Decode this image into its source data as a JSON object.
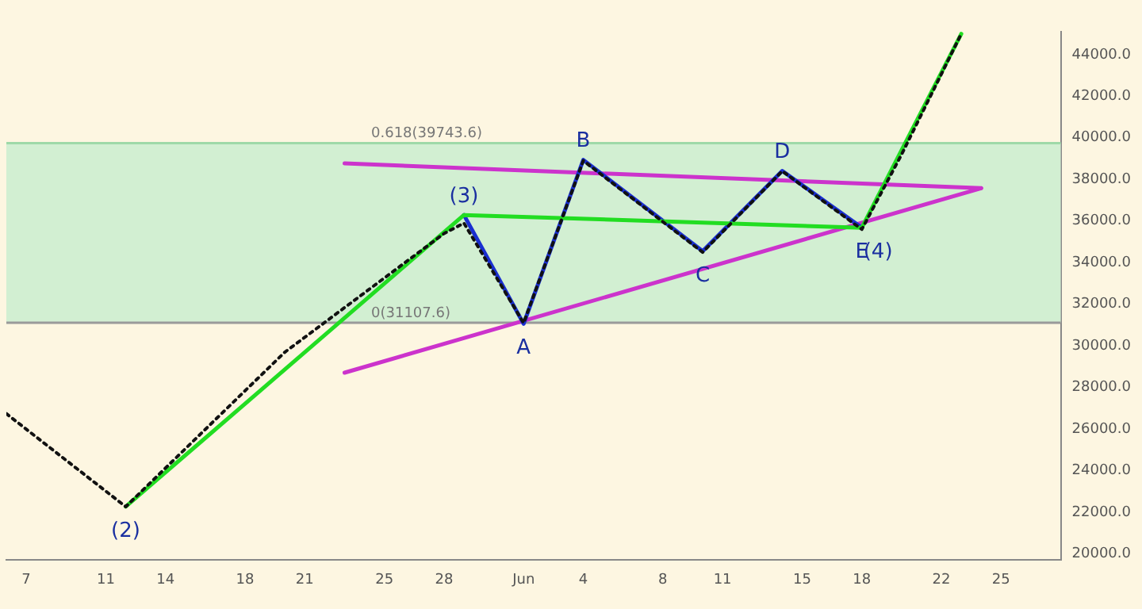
{
  "chart_data": {
    "type": "line",
    "xlim": [
      "--05-06",
      "--06-28"
    ],
    "ylim": [
      19700,
      45100
    ],
    "xticks": [
      {
        "value": "--05-07",
        "label": "7"
      },
      {
        "value": "--05-11",
        "label": "11"
      },
      {
        "value": "--05-14",
        "label": "14"
      },
      {
        "value": "--05-18",
        "label": "18"
      },
      {
        "value": "--05-21",
        "label": "21"
      },
      {
        "value": "--05-25",
        "label": "25"
      },
      {
        "value": "--05-28",
        "label": "28"
      },
      {
        "value": "--06-01",
        "label": "Jun"
      },
      {
        "value": "--06-04",
        "label": "4"
      },
      {
        "value": "--06-08",
        "label": "8"
      },
      {
        "value": "--06-11",
        "label": "11"
      },
      {
        "value": "--06-15",
        "label": "15"
      },
      {
        "value": "--06-18",
        "label": "18"
      },
      {
        "value": "--06-22",
        "label": "22"
      },
      {
        "value": "--06-25",
        "label": "25"
      }
    ],
    "yticks": [
      {
        "value": 20000,
        "label": "20000.0"
      },
      {
        "value": 22000,
        "label": "22000.0"
      },
      {
        "value": 24000,
        "label": "24000.0"
      },
      {
        "value": 26000,
        "label": "26000.0"
      },
      {
        "value": 28000,
        "label": "28000.0"
      },
      {
        "value": 30000,
        "label": "30000.0"
      },
      {
        "value": 32000,
        "label": "32000.0"
      },
      {
        "value": 34000,
        "label": "34000.0"
      },
      {
        "value": 36000,
        "label": "36000.0"
      },
      {
        "value": 38000,
        "label": "38000.0"
      },
      {
        "value": 40000,
        "label": "40000.0"
      },
      {
        "value": 42000,
        "label": "42000.0"
      },
      {
        "value": 44000,
        "label": "44000.0"
      }
    ],
    "grid": false,
    "legend": false,
    "marker": "none",
    "bands": [
      {
        "axis": "y",
        "from": 31107.6,
        "to": 39743.6,
        "color": "#d2efd2"
      }
    ],
    "ref_lines": [
      {
        "axis": "y",
        "value": 39743.6,
        "label": "0.618(39743.6)",
        "color": "#9fd9a8"
      },
      {
        "axis": "y",
        "value": 31107.6,
        "label": "0(31107.6)",
        "color": "#9a9a9a"
      }
    ],
    "series": [
      {
        "color": "#111111",
        "line_style": "dotted",
        "x": [
          "--05-06",
          "--05-12",
          "--05-20",
          "--05-28",
          "--05-29",
          "--06-01",
          "--06-04",
          "--06-10",
          "--06-14",
          "--06-18",
          "--06-20",
          "--06-23"
        ],
        "values": [
          26740,
          22270,
          29700,
          35400,
          35900,
          31100,
          38900,
          34500,
          38400,
          35600,
          39200,
          45000
        ]
      },
      {
        "color": "#22dd22",
        "line_style": "solid",
        "x": [
          "--05-12",
          "--05-29",
          "--06-18",
          "--06-23"
        ],
        "values": [
          22270,
          36290,
          35680,
          45000
        ]
      },
      {
        "color": "#1a2fd0",
        "line_style": "solid",
        "x": [
          "--05-29",
          "--06-01",
          "--06-04",
          "--06-10",
          "--06-14",
          "--06-18"
        ],
        "values": [
          36290,
          31060,
          38940,
          34550,
          38410,
          35680
        ]
      },
      {
        "color": "#cc33cc",
        "line_style": "solid",
        "x": [
          "--05-23",
          "--06-24"
        ],
        "values": [
          38770,
          37580
        ]
      },
      {
        "color": "#cc33cc",
        "line_style": "solid",
        "x": [
          "--05-23",
          "--06-24"
        ],
        "values": [
          28710,
          37580
        ]
      }
    ],
    "annotations": [
      {
        "text": "(2)",
        "x": "--05-12",
        "y": 22270
      },
      {
        "text": "(3)",
        "x": "--05-29",
        "y": 36290
      },
      {
        "text": "A",
        "x": "--06-01",
        "y": 31060
      },
      {
        "text": "B",
        "x": "--06-04",
        "y": 38940
      },
      {
        "text": "C",
        "x": "--06-10",
        "y": 34550
      },
      {
        "text": "D",
        "x": "--06-14",
        "y": 38410
      },
      {
        "text": "E",
        "x": "--06-18",
        "y": 35680
      },
      {
        "text": "(4)",
        "x": "--06-18",
        "y": 35680
      }
    ]
  }
}
